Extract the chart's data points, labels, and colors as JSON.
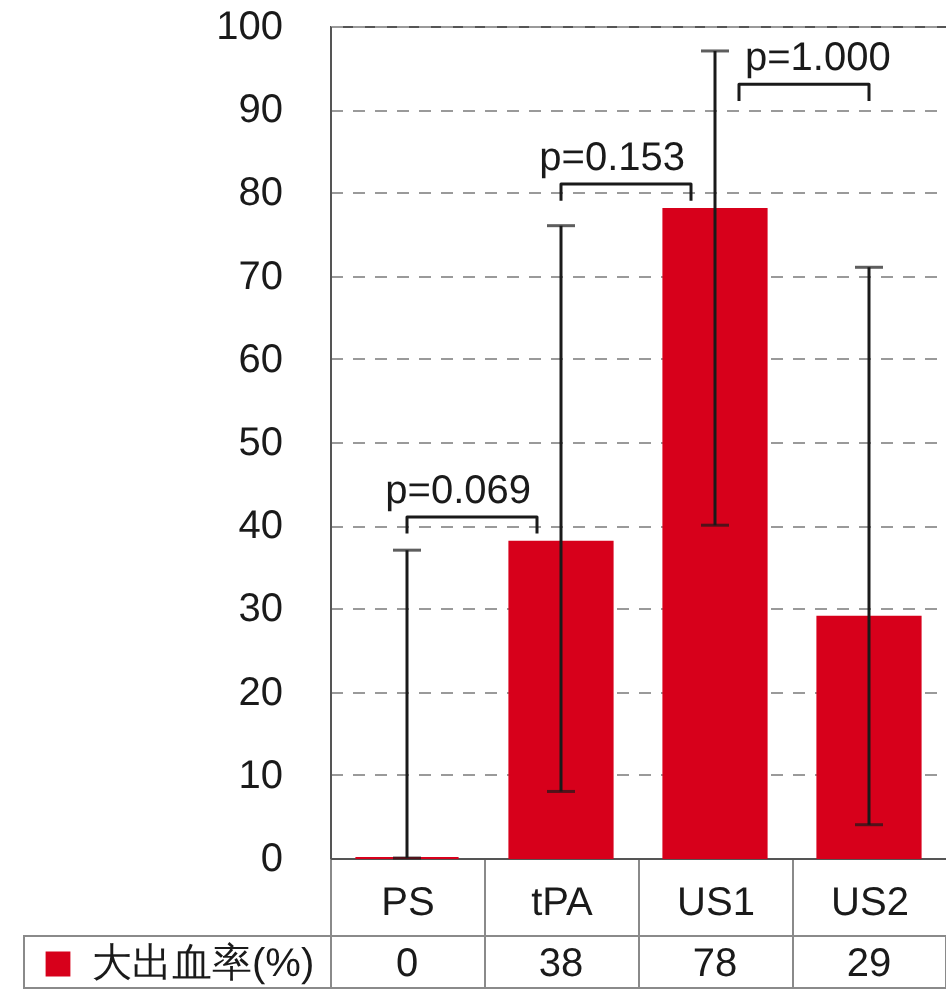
{
  "chart_data": {
    "type": "bar",
    "categories": [
      "PS",
      "tPA",
      "US1",
      "US2"
    ],
    "series": [
      {
        "name": "大出血率(%)",
        "color": "#d7001b",
        "values": [
          0,
          38,
          78,
          29
        ],
        "errors": [
          [
            0,
            37
          ],
          [
            8,
            76
          ],
          [
            40,
            97
          ],
          [
            4,
            71
          ]
        ]
      }
    ],
    "ylim": [
      0,
      100
    ],
    "yticks": [
      0,
      10,
      20,
      30,
      40,
      50,
      60,
      70,
      80,
      90,
      100
    ],
    "grid": "y",
    "legend": "bottom left",
    "data_labels": true,
    "annotations": [
      "p=0.069",
      "p=0.153",
      "p=1.000"
    ]
  }
}
